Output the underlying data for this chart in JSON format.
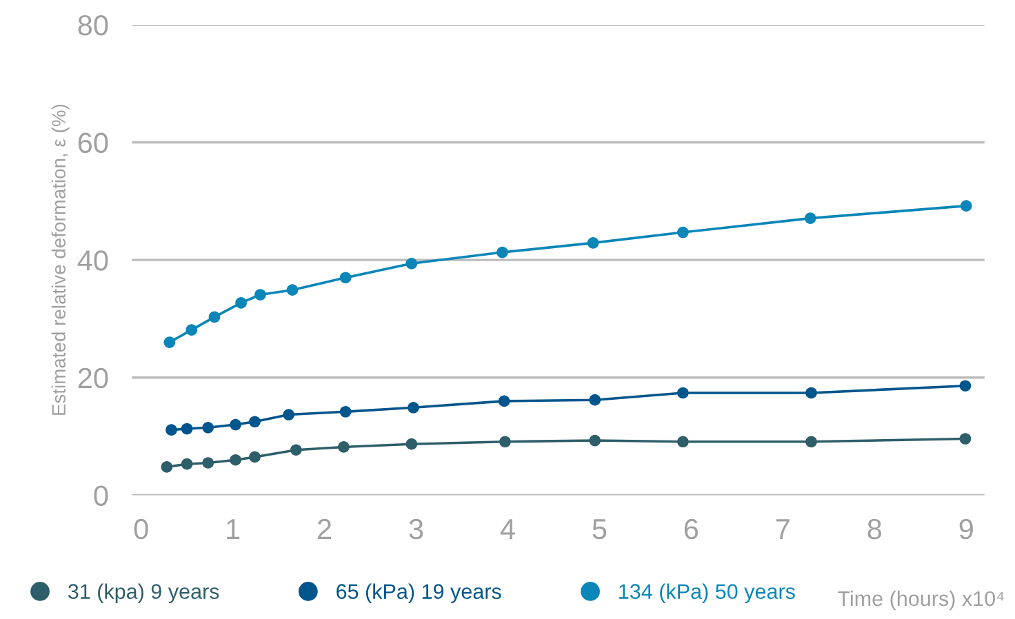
{
  "chart_data": {
    "type": "line",
    "ylabel": "Estimated relative deformation, ε (%)",
    "xlabel": "Time (hours) x10⁴",
    "xlim": [
      -0.1,
      9.2
    ],
    "xticks": [
      0,
      1,
      2,
      3,
      4,
      5,
      6,
      7,
      8,
      9
    ],
    "ylim": [
      0,
      80
    ],
    "yticks": [
      0,
      20,
      40,
      60,
      80
    ],
    "grid": "y",
    "legend": "bottom left",
    "marker": "circle",
    "line_style": "solid",
    "series": [
      {
        "name": "31 (kpa) 9 years",
        "color": "#2e5e6a",
        "x": [
          0.28,
          0.5,
          0.73,
          1.03,
          1.24,
          1.69,
          2.21,
          2.95,
          3.97,
          4.95,
          5.91,
          7.31,
          8.99
        ],
        "values": [
          4.8,
          5.3,
          5.5,
          6.0,
          6.5,
          7.7,
          8.2,
          8.7,
          9.1,
          9.3,
          9.1,
          9.1,
          9.6
        ]
      },
      {
        "name": "65 (kPa) 19 years",
        "color": "#00558c",
        "x": [
          0.33,
          0.5,
          0.73,
          1.03,
          1.24,
          1.61,
          2.23,
          2.97,
          3.96,
          4.95,
          5.91,
          7.31,
          8.99
        ],
        "values": [
          11.1,
          11.3,
          11.5,
          12.0,
          12.5,
          13.7,
          14.2,
          14.9,
          16.0,
          16.2,
          17.4,
          17.4,
          18.6
        ]
      },
      {
        "name": "134 (kPa) 50 years",
        "color": "#0a86b8",
        "x": [
          0.31,
          0.55,
          0.8,
          1.09,
          1.3,
          1.65,
          2.23,
          2.95,
          3.94,
          4.93,
          5.91,
          7.3,
          9.0
        ],
        "values": [
          26.0,
          28.1,
          30.3,
          32.7,
          34.1,
          34.9,
          37.0,
          39.4,
          41.3,
          42.9,
          44.7,
          47.1,
          49.2
        ]
      }
    ]
  }
}
